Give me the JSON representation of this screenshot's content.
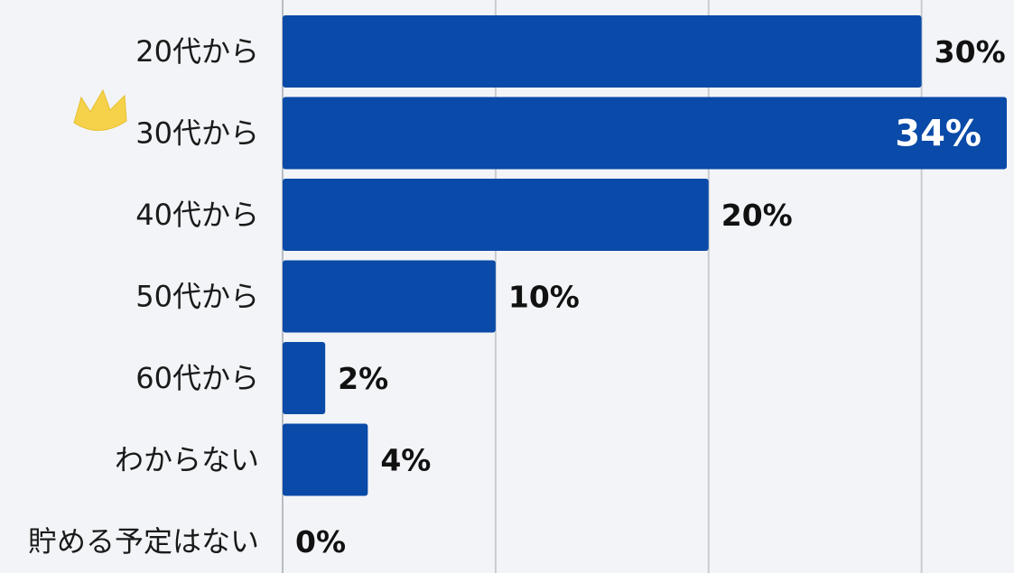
{
  "chart_data": {
    "type": "bar",
    "orientation": "horizontal",
    "categories": [
      "20代から",
      "30代から",
      "40代から",
      "50代から",
      "60代から",
      "わからない",
      "貯める予定はない"
    ],
    "values": [
      30,
      34,
      20,
      10,
      2,
      4,
      0
    ],
    "value_labels": [
      "30%",
      "34%",
      "20%",
      "10%",
      "2%",
      "4%",
      "0%"
    ],
    "highlight_index": 1,
    "highlight_icon": "crown-icon",
    "xlim": [
      0,
      34
    ],
    "gridline_values": [
      10,
      20,
      30
    ],
    "grid": true,
    "bar_color": "#0a4aa8",
    "highlight_label_color": "#ffffff",
    "crown_color": "#f5d24a"
  }
}
